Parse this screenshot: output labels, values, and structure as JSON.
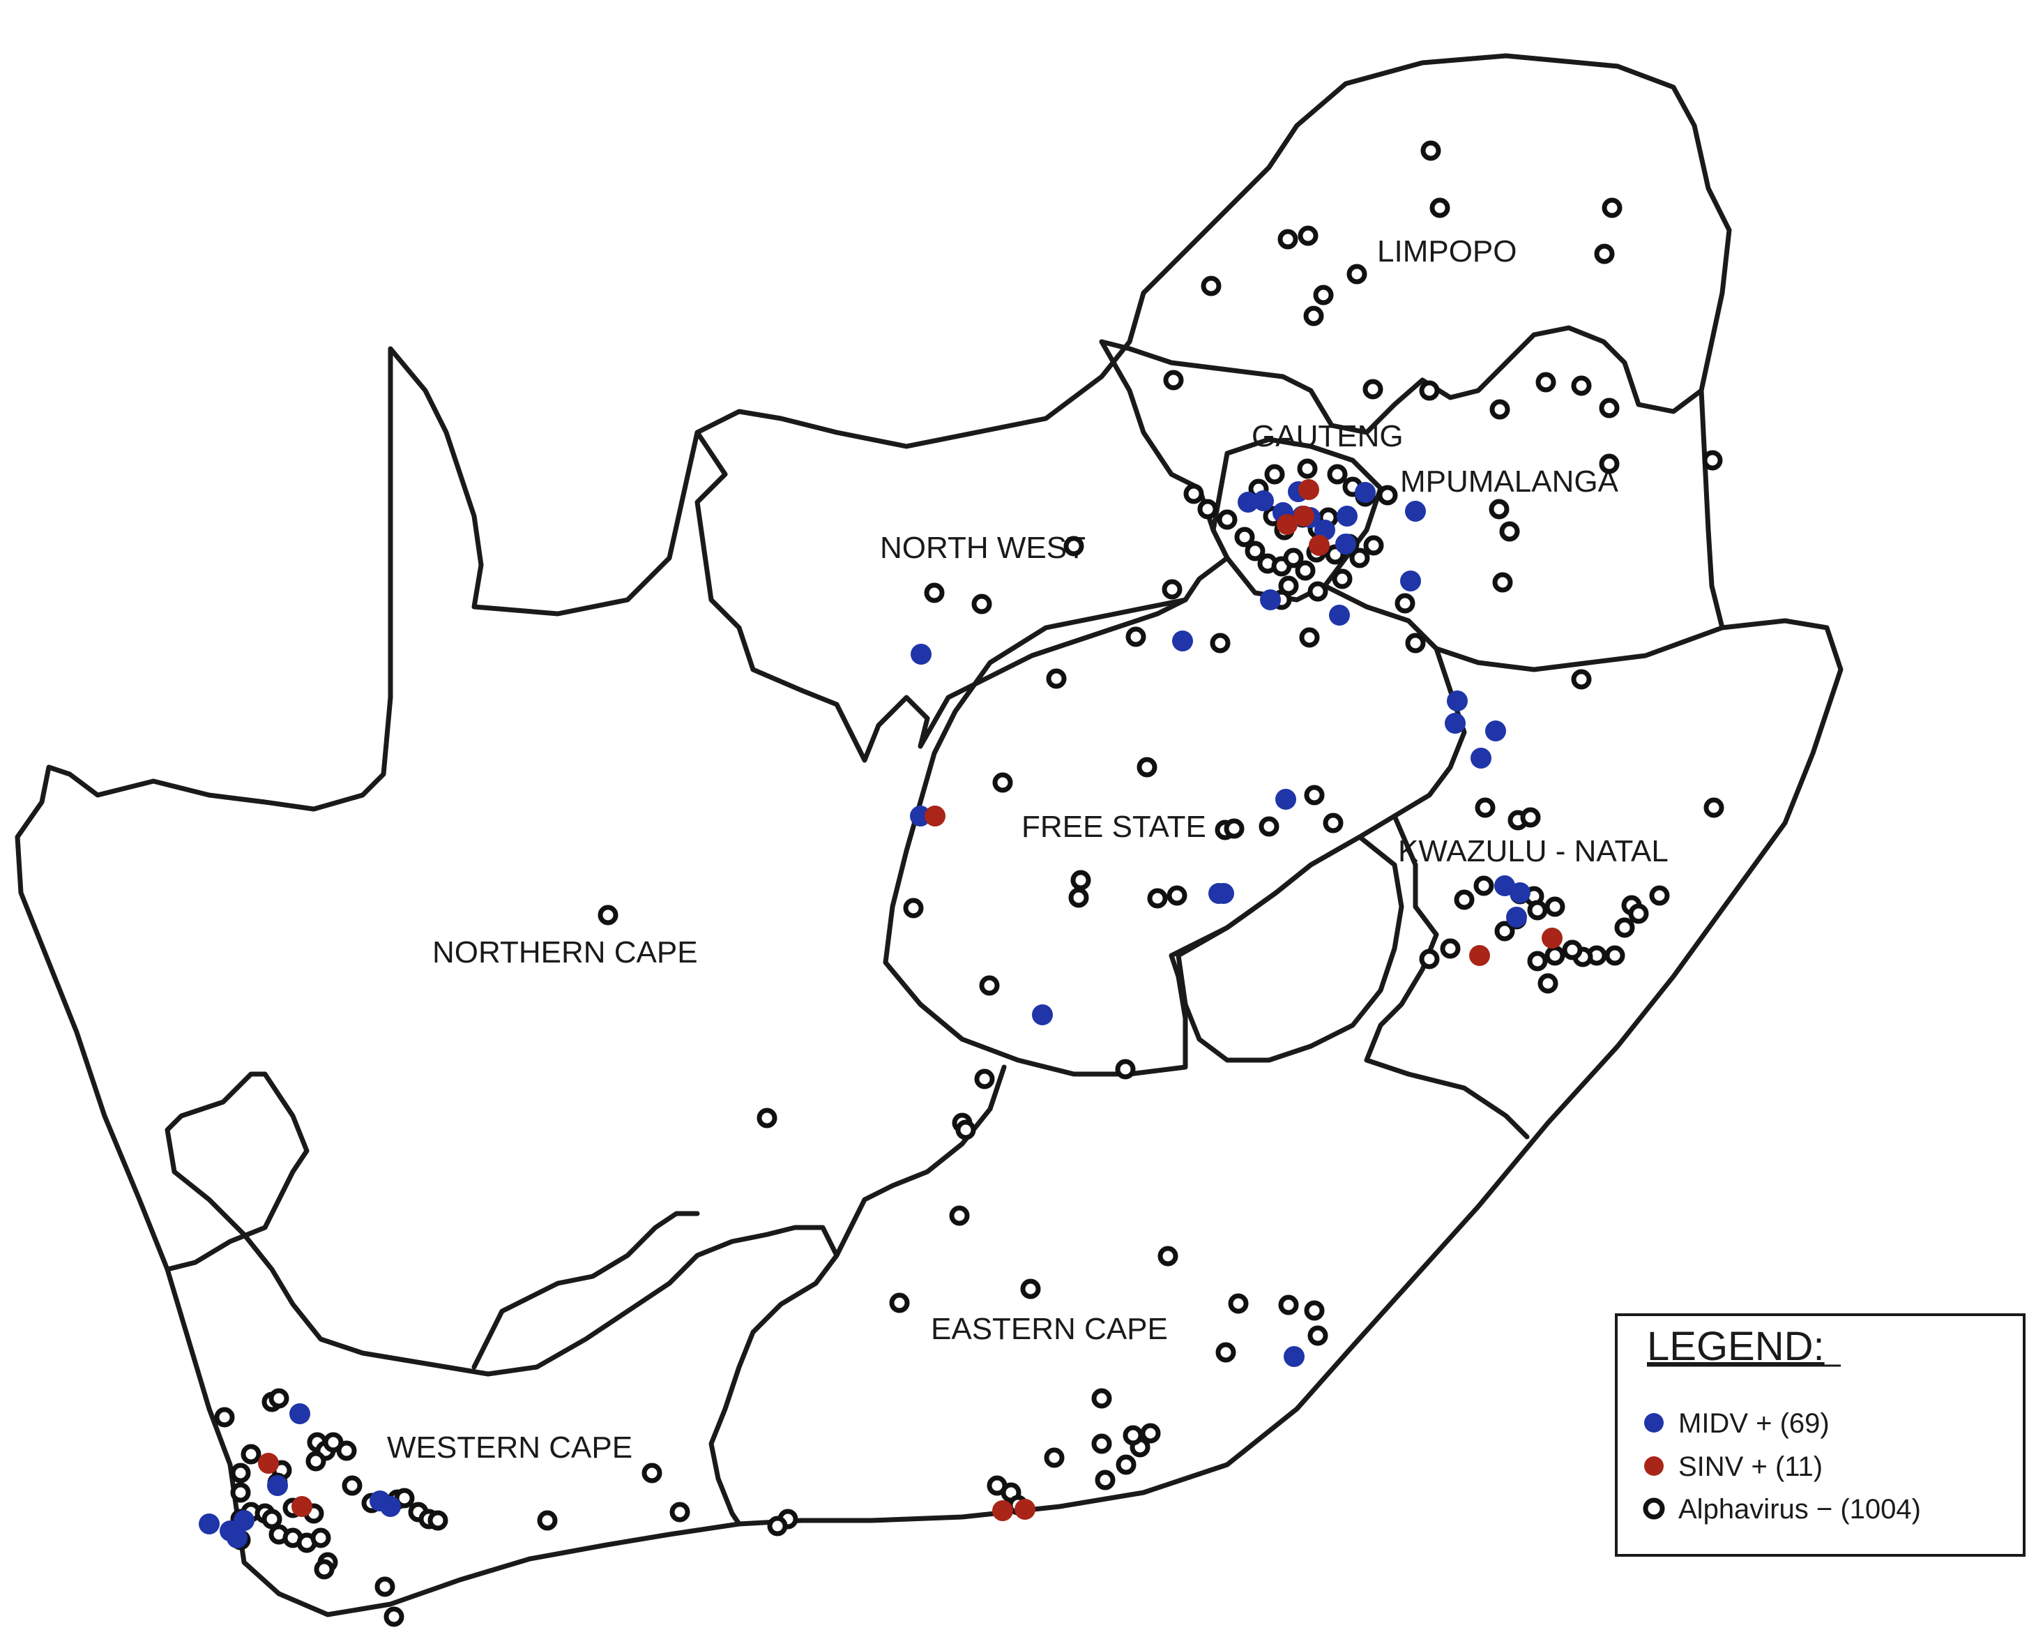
{
  "colors": {
    "midv": "#1f35a8",
    "sinv": "#a82518",
    "negative_fill": "#ffffff",
    "negative_stroke": "#111111",
    "border": "#1a1a1a"
  },
  "regions": {
    "limpopo": "LIMPOPO",
    "gauteng": "GAUTENG",
    "mpumalanga": "MPUMALANGA",
    "north_west": "NORTH WEST",
    "free_state": "FREE STATE",
    "kwazulu_natal": "KWAZULU - NATAL",
    "northern_cape": "NORTHERN CAPE",
    "eastern_cape": "EASTERN CAPE",
    "western_cape": "WESTERN CAPE"
  },
  "legend": {
    "title": "LEGEND:",
    "items": [
      {
        "key": "midv",
        "label": "MIDV + (69)",
        "marker": "filled-blue-dot"
      },
      {
        "key": "sinv",
        "label": "SINV + (11)",
        "marker": "filled-red-dot"
      },
      {
        "key": "neg",
        "label": "Alphavirus − (1004)",
        "marker": "open-black-circle"
      }
    ]
  }
}
